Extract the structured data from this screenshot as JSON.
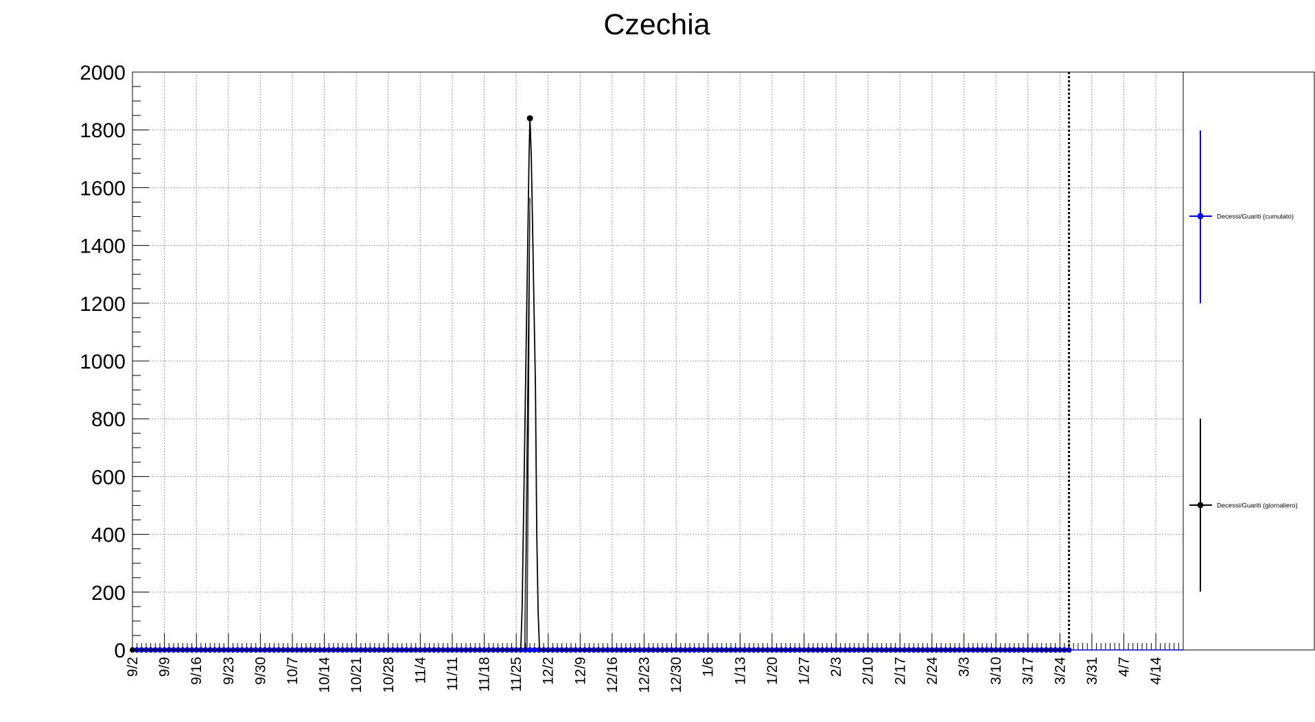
{
  "chart_data": {
    "type": "line",
    "title": "Czechia",
    "xlabel": "",
    "ylabel": "",
    "ylim": [
      0,
      2000
    ],
    "yticks": [
      0,
      200,
      400,
      600,
      800,
      1000,
      1200,
      1400,
      1600,
      1800,
      2000
    ],
    "x_tick_labels": [
      "9/2",
      "9/9",
      "9/16",
      "9/23",
      "9/30",
      "10/7",
      "10/14",
      "10/21",
      "10/28",
      "11/4",
      "11/11",
      "11/18",
      "11/25",
      "12/2",
      "12/9",
      "12/16",
      "12/23",
      "12/30",
      "1/6",
      "1/13",
      "1/20",
      "1/27",
      "2/3",
      "2/10",
      "2/17",
      "2/24",
      "3/3",
      "3/10",
      "3/17",
      "3/24",
      "3/31",
      "4/7",
      "4/14"
    ],
    "x_day_range": [
      0,
      230
    ],
    "grid": true,
    "legend_position": "right",
    "vertical_marker_day": 205,
    "colors": {
      "cumulative": "#0000ff",
      "daily": "#000000",
      "grid": "#9a9a9a",
      "marker_line": "#000000"
    },
    "series": [
      {
        "name": "Decessi/Guariti (cumulato)",
        "color": "#0000ff",
        "marker_day_range": [
          1,
          205
        ],
        "value": 0
      },
      {
        "name": "Decessi/Guariti (giornaliero)",
        "color": "#000000",
        "points": [
          {
            "day": 0,
            "value": 0
          },
          {
            "day": 85,
            "value": 0
          },
          {
            "day": 85.3,
            "value": 150
          },
          {
            "day": 85.6,
            "value": 460
          },
          {
            "day": 85.9,
            "value": 770
          },
          {
            "day": 86.2,
            "value": 1080
          },
          {
            "day": 86.5,
            "value": 1380
          },
          {
            "day": 86.8,
            "value": 1700
          },
          {
            "day": 87,
            "value": 1840
          },
          {
            "day": 87.3,
            "value": 1710
          },
          {
            "day": 87.6,
            "value": 1450
          },
          {
            "day": 87.9,
            "value": 1180
          },
          {
            "day": 88.2,
            "value": 920
          },
          {
            "day": 88.5,
            "value": 400
          },
          {
            "day": 88.8,
            "value": 130
          },
          {
            "day": 89.1,
            "value": 0
          },
          {
            "day": 205,
            "value": 0
          }
        ],
        "peak": {
          "day": 87,
          "value": 1840
        }
      }
    ]
  }
}
